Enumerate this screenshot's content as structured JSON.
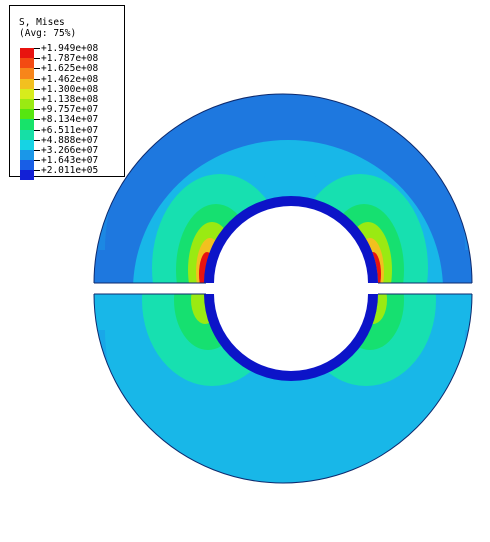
{
  "legend": {
    "title": "S, Mises",
    "subtitle": "(Avg: 75%)",
    "entries": [
      "+1.949e+08",
      "+1.787e+08",
      "+1.625e+08",
      "+1.462e+08",
      "+1.300e+08",
      "+1.138e+08",
      "+9.757e+07",
      "+8.134e+07",
      "+6.511e+07",
      "+4.888e+07",
      "+3.266e+07",
      "+1.643e+07",
      "+2.011e+05"
    ],
    "colors": [
      "#e8130f",
      "#f34a12",
      "#f7851a",
      "#f2c01f",
      "#d7ec1c",
      "#9aea12",
      "#56e610",
      "#17e36a",
      "#16dfa6",
      "#16d3e4",
      "#1a97e8",
      "#185ee6",
      "#1220d6"
    ]
  },
  "model": {
    "fill_outer": "#1e78df",
    "fill_mid": "#18b7e8",
    "fill_inner_band": "#17e0b0",
    "fill_core": "#16e070",
    "hot": "#e8130f",
    "warm": "#f7a31a",
    "ring_dark": "#0c14c8"
  }
}
